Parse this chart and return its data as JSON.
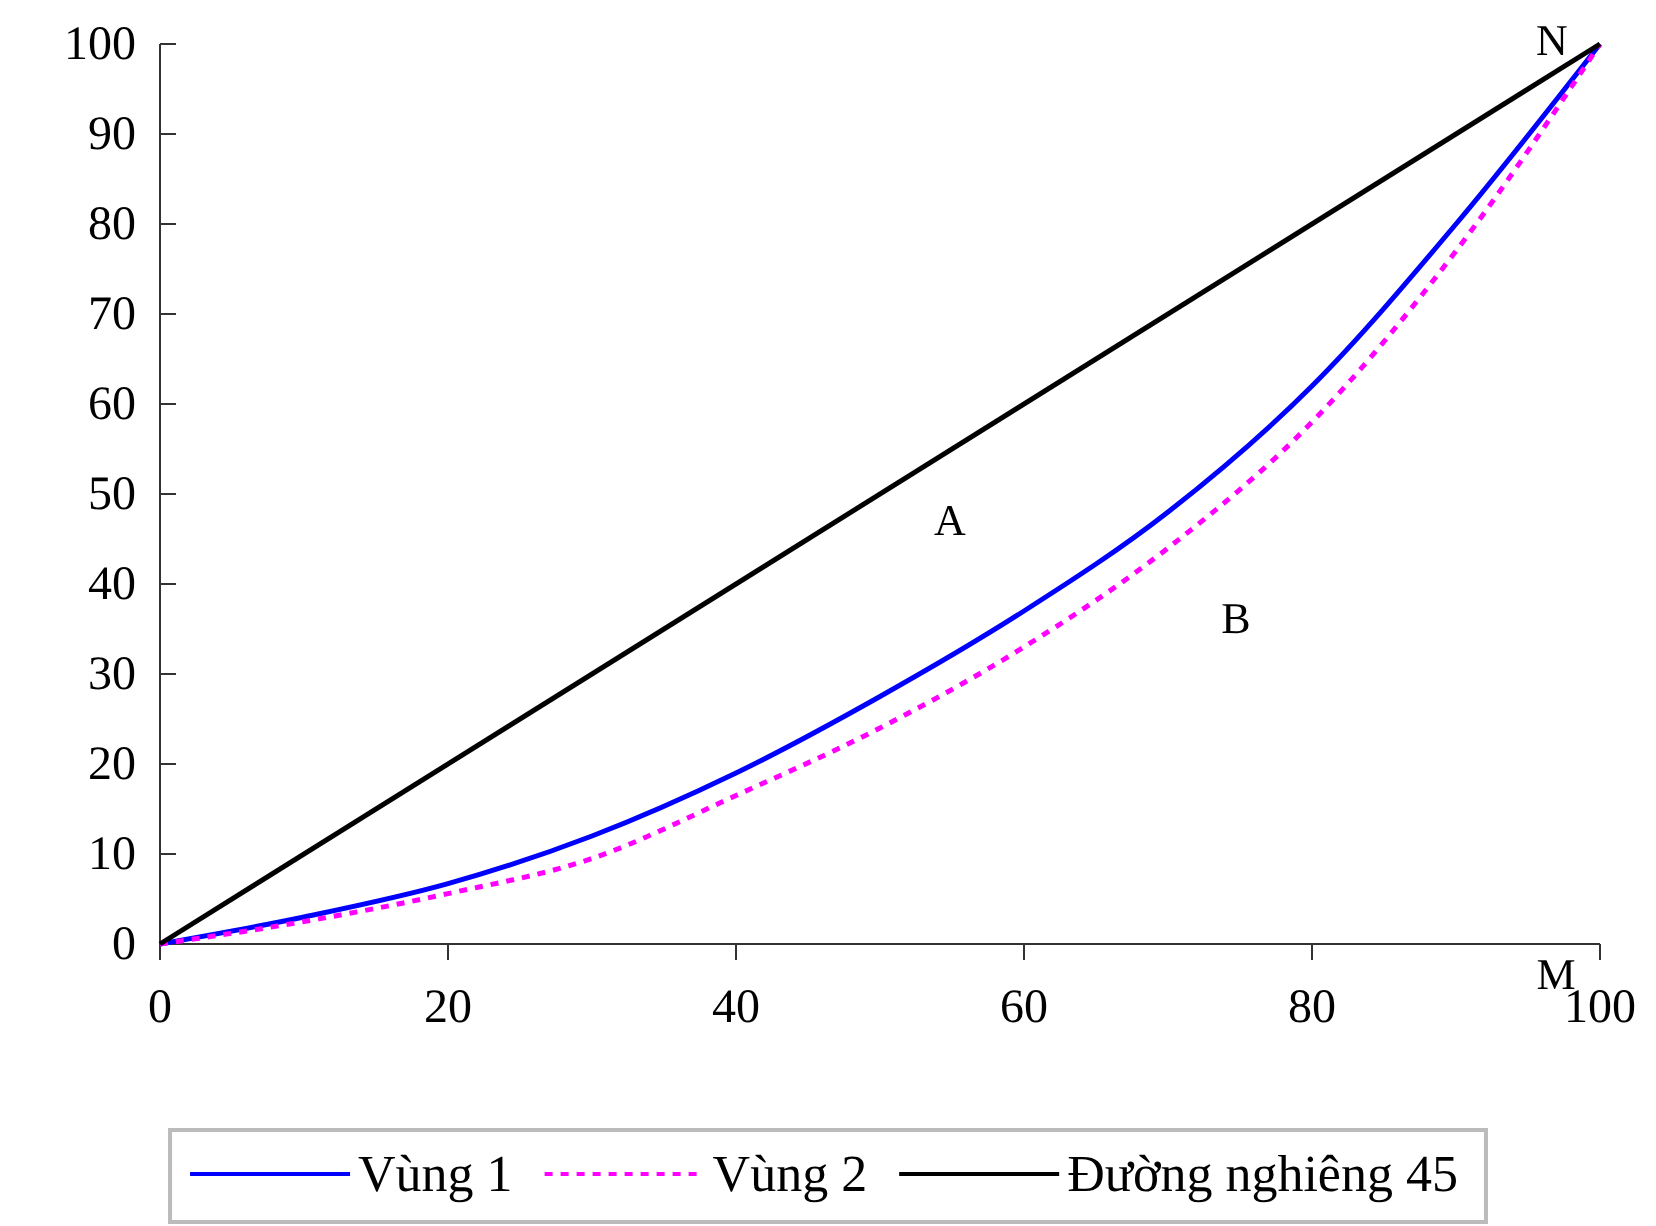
{
  "chart_data": {
    "type": "line",
    "xlim": [
      0,
      100
    ],
    "ylim": [
      0,
      100
    ],
    "xticks": [
      0,
      20,
      40,
      60,
      80,
      100
    ],
    "yticks": [
      0,
      10,
      20,
      30,
      40,
      50,
      60,
      70,
      80,
      90,
      100
    ],
    "grid": false,
    "legend": "bottom",
    "marker": "none",
    "series": [
      {
        "name": "Vùng 1",
        "color": "#0000ff",
        "line_style": "solid",
        "x": [
          0,
          10,
          20,
          30,
          40,
          50,
          60,
          70,
          80,
          90,
          100
        ],
        "values": [
          0,
          3,
          6.7,
          12,
          19,
          27.5,
          37,
          48,
          62,
          80,
          100
        ]
      },
      {
        "name": "Vùng 2",
        "color": "#ff00ff",
        "line_style": "dotted",
        "x": [
          0,
          10,
          20,
          30,
          40,
          50,
          60,
          70,
          80,
          90,
          100
        ],
        "values": [
          0,
          2.5,
          5.6,
          9.5,
          16.5,
          24,
          33,
          44,
          58,
          77,
          100
        ]
      },
      {
        "name": "Đường nghiêng 45",
        "color": "#000000",
        "line_style": "solid",
        "x": [
          0,
          100
        ],
        "values": [
          0,
          100
        ]
      }
    ],
    "annotations": [
      "A",
      "B",
      "N",
      "M"
    ]
  }
}
